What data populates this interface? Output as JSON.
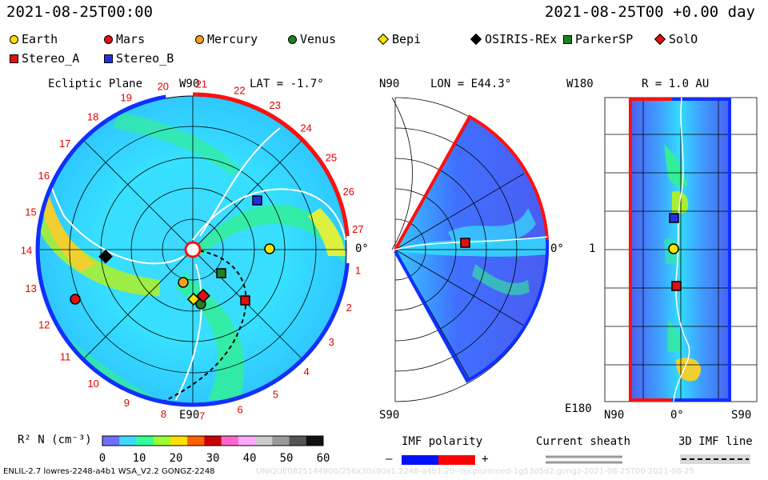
{
  "header": {
    "date_left": "2021-08-25T00:00",
    "date_right": "2021-08-25T00 +0.00 day"
  },
  "legend": [
    {
      "name": "Earth",
      "shape": "circle",
      "color": "#ffe000"
    },
    {
      "name": "Mars",
      "shape": "circle",
      "color": "#e01010"
    },
    {
      "name": "Mercury",
      "shape": "circle",
      "color": "#f0a020"
    },
    {
      "name": "Venus",
      "shape": "circle",
      "color": "#208020"
    },
    {
      "name": "Bepi",
      "shape": "diamond",
      "color": "#ffe000"
    },
    {
      "name": "OSIRIS-REx",
      "shape": "diamond",
      "color": "#000000"
    },
    {
      "name": "ParkerSP",
      "shape": "square",
      "color": "#208020"
    },
    {
      "name": "SolO",
      "shape": "diamond",
      "color": "#e01010"
    },
    {
      "name": "Stereo_A",
      "shape": "square",
      "color": "#e01010"
    },
    {
      "name": "Stereo_B",
      "shape": "square",
      "color": "#2030e0"
    }
  ],
  "ecliptic": {
    "title": "Ecliptic Plane",
    "top_label": "W90",
    "bottom_label": "E90",
    "lat": "LAT = -1.7°",
    "zero_label": "0°",
    "carrington_numbers": [
      "1",
      "2",
      "3",
      "4",
      "5",
      "6",
      "7",
      "8",
      "9",
      "10",
      "11",
      "12",
      "13",
      "14",
      "15",
      "16",
      "17",
      "18",
      "19",
      "20",
      "21",
      "22",
      "23",
      "24",
      "25",
      "26",
      "27"
    ]
  },
  "meridional": {
    "lon": "LON = E44.3°",
    "north": "N90",
    "south": "S90",
    "zero_label": "0°"
  },
  "radial": {
    "r": "R = 1.0 AU",
    "top": "W180",
    "bottom": "E180",
    "mid": "1",
    "x_labels": [
      "N90",
      "0°",
      "S90"
    ]
  },
  "colorbar": {
    "label": "R² N (cm⁻³)",
    "ticks": [
      "0",
      "10",
      "20",
      "30",
      "40",
      "50",
      "60"
    ],
    "colors": [
      "#6f6fff",
      "#3fd8ff",
      "#33ff99",
      "#99ff33",
      "#ffe000",
      "#ff6000",
      "#cc0000",
      "#ff66cc",
      "#ffaaff",
      "#cccccc",
      "#999999",
      "#555555",
      "#111111"
    ]
  },
  "imf_legend": {
    "title": "IMF polarity",
    "minus": "–",
    "plus": "+",
    "neg_color": "#0010ff",
    "pos_color": "#ff0000"
  },
  "sheath_legend": {
    "title": "Current sheath"
  },
  "imf3d_legend": {
    "title": "3D IMF line"
  },
  "footer": {
    "left": "ENLIL-2.7 lowres-2248-a4b1 WSA_V2.2 GONGZ-2248",
    "right": "UNIQUE0825144900/256x30x90x1.2248-a4b1.20--mcplummed-1g53d5d2.gongz-2021-08-25T00    2021-08-25"
  }
}
